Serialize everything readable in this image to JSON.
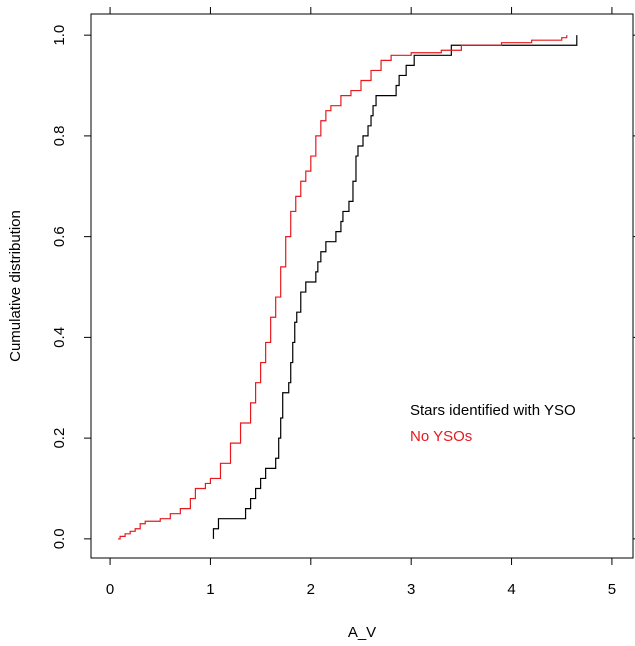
{
  "chart_data": {
    "type": "step",
    "xlabel": "A_V",
    "ylabel": "Cumulative distribution",
    "xlim": [
      -0.19,
      5.21
    ],
    "ylim": [
      -0.038,
      1.042
    ],
    "xticks": [
      0,
      1,
      2,
      3,
      4,
      5
    ],
    "yticks": [
      {
        "value": 0,
        "label": "0.0"
      },
      0.2,
      0.4,
      0.6,
      0.8,
      {
        "value": 1,
        "label": "1.0"
      }
    ],
    "legend": "right",
    "series": [
      {
        "name": "Stars identified with YSO",
        "color": "#000000",
        "x": [
          1.03,
          1.03,
          1.08,
          1.35,
          1.4,
          1.45,
          1.5,
          1.55,
          1.65,
          1.68,
          1.7,
          1.72,
          1.78,
          1.8,
          1.82,
          1.84,
          1.86,
          1.9,
          1.95,
          2.05,
          2.07,
          2.1,
          2.15,
          2.25,
          2.3,
          2.32,
          2.38,
          2.42,
          2.45,
          2.47,
          2.52,
          2.57,
          2.6,
          2.62,
          2.65,
          2.85,
          2.88,
          2.95,
          3.03,
          3.4,
          4.65
        ],
        "values": [
          0,
          0.02,
          0.04,
          0.06,
          0.08,
          0.1,
          0.12,
          0.14,
          0.16,
          0.2,
          0.24,
          0.29,
          0.31,
          0.35,
          0.39,
          0.43,
          0.45,
          0.49,
          0.51,
          0.53,
          0.55,
          0.57,
          0.59,
          0.61,
          0.63,
          0.65,
          0.67,
          0.71,
          0.76,
          0.78,
          0.8,
          0.82,
          0.84,
          0.86,
          0.88,
          0.9,
          0.92,
          0.94,
          0.96,
          0.98,
          1.0
        ]
      },
      {
        "name": "No YSOs",
        "color": "#e8191c",
        "x": [
          0.08,
          0.1,
          0.15,
          0.2,
          0.25,
          0.3,
          0.35,
          0.5,
          0.6,
          0.7,
          0.8,
          0.85,
          0.95,
          1.0,
          1.1,
          1.2,
          1.3,
          1.4,
          1.45,
          1.5,
          1.55,
          1.6,
          1.65,
          1.7,
          1.75,
          1.8,
          1.85,
          1.9,
          1.95,
          2.0,
          2.05,
          2.1,
          2.15,
          2.2,
          2.3,
          2.4,
          2.5,
          2.6,
          2.7,
          2.8,
          3.0,
          3.3,
          3.5,
          3.9,
          4.2,
          4.5,
          4.55
        ],
        "values": [
          0,
          0.005,
          0.01,
          0.015,
          0.02,
          0.03,
          0.035,
          0.04,
          0.05,
          0.06,
          0.08,
          0.1,
          0.11,
          0.12,
          0.15,
          0.19,
          0.23,
          0.27,
          0.31,
          0.35,
          0.39,
          0.44,
          0.48,
          0.54,
          0.6,
          0.65,
          0.68,
          0.71,
          0.73,
          0.76,
          0.8,
          0.83,
          0.85,
          0.86,
          0.88,
          0.89,
          0.91,
          0.93,
          0.95,
          0.96,
          0.965,
          0.97,
          0.98,
          0.985,
          0.99,
          0.995,
          1.0
        ]
      }
    ]
  }
}
